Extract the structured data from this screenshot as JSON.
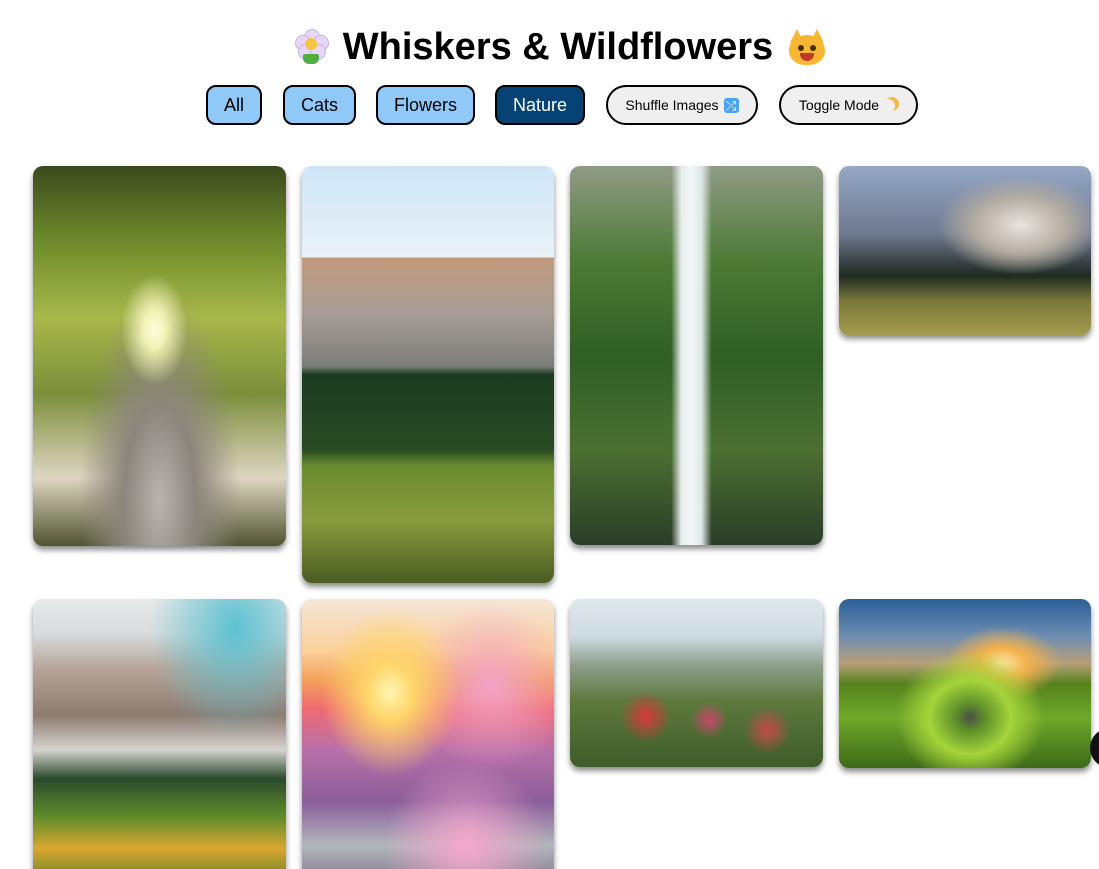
{
  "header": {
    "title": "Whiskers & Wildflowers",
    "left_icon": "flower-icon",
    "right_icon": "cat-face-icon"
  },
  "filters": {
    "buttons": [
      {
        "label": "All",
        "active": false
      },
      {
        "label": "Cats",
        "active": false
      },
      {
        "label": "Flowers",
        "active": false
      },
      {
        "label": "Nature",
        "active": true
      }
    ],
    "shuffle_label": "Shuffle Images",
    "shuffle_icon": "shuffle-icon",
    "toggle_label": "Toggle Mode",
    "toggle_icon": "crescent-moon-icon"
  },
  "colors": {
    "filter_bg": "#90c8f7",
    "filter_active_bg": "#074275",
    "pill_bg": "#efefef"
  },
  "gallery": {
    "images": [
      {
        "subject": "giant-tree"
      },
      {
        "subject": "deer-half-dome"
      },
      {
        "subject": "multnomah-falls"
      },
      {
        "subject": "el-capitan-meadow"
      },
      {
        "subject": "dolomite-peaks"
      },
      {
        "subject": "cherry-blossom-sunset"
      },
      {
        "subject": "wildflower-field"
      },
      {
        "subject": "green-valley-spiral"
      }
    ]
  }
}
